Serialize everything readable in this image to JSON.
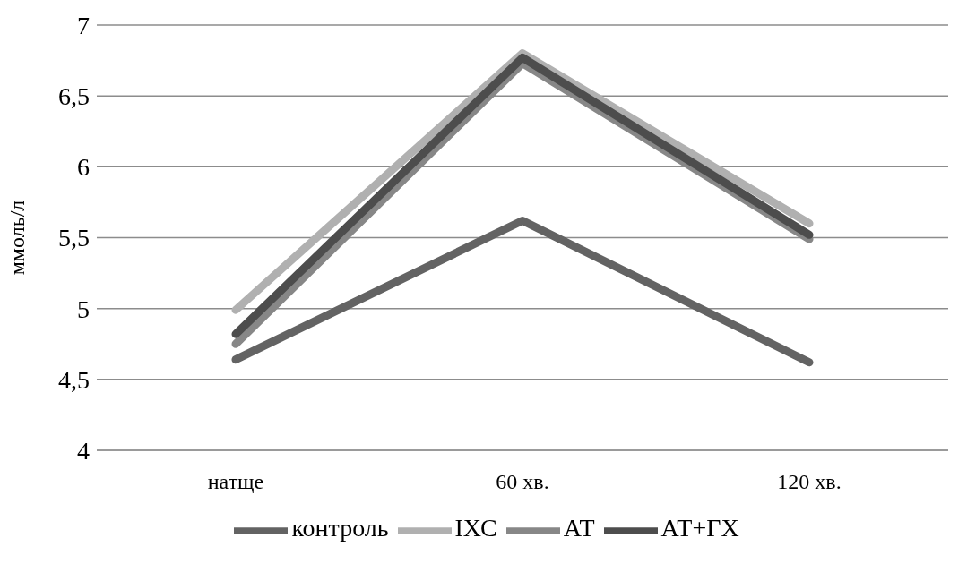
{
  "chart_data": {
    "type": "line",
    "ylabel": "ммоль/л",
    "categories": [
      "натще",
      "60 хв.",
      "120 хв."
    ],
    "series": [
      {
        "name": "контроль",
        "color": "#636363",
        "values": [
          4.64,
          5.62,
          4.62
        ]
      },
      {
        "name": "ІХС",
        "color": "#b0b0b0",
        "values": [
          4.99,
          6.8,
          5.6
        ]
      },
      {
        "name": "АТ",
        "color": "#878787",
        "values": [
          4.75,
          6.73,
          5.49
        ]
      },
      {
        "name": "АТ+ГХ",
        "color": "#4d4d4d",
        "values": [
          4.82,
          6.77,
          5.52
        ]
      }
    ],
    "ylim": [
      4,
      7
    ],
    "yticks": [
      {
        "value": 4,
        "label": "4"
      },
      {
        "value": 4.5,
        "label": "4,5"
      },
      {
        "value": 5,
        "label": "5"
      },
      {
        "value": 5.5,
        "label": "5,5"
      },
      {
        "value": 6,
        "label": "6"
      },
      {
        "value": 6.5,
        "label": "6,5"
      },
      {
        "value": 7,
        "label": "7"
      }
    ],
    "grid": "y",
    "legend": "bottom",
    "marker": "none",
    "line_style": "solid"
  }
}
